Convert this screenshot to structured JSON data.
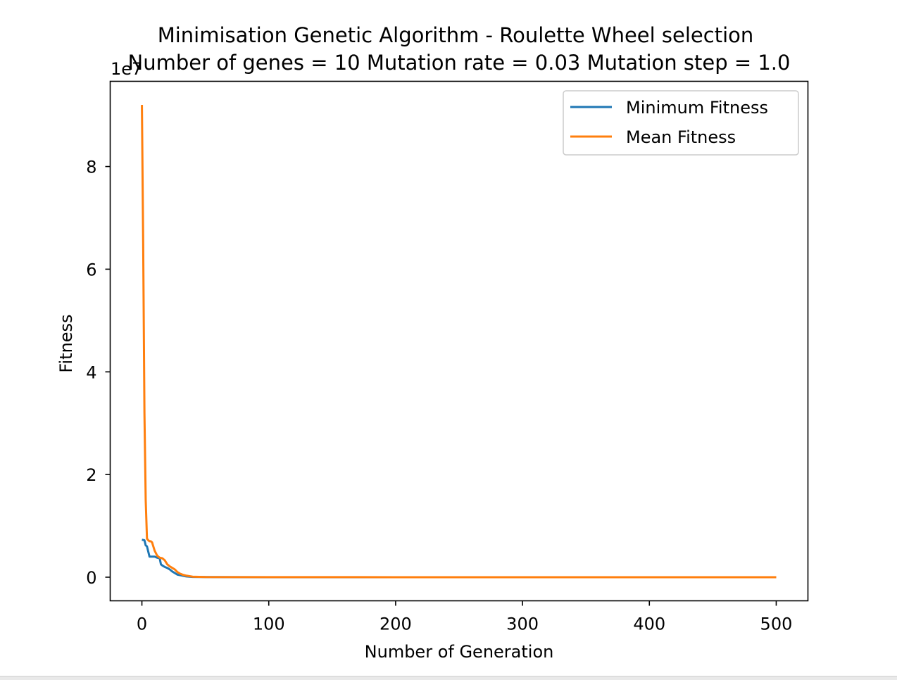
{
  "chart_data": {
    "type": "line",
    "title": "Minimisation Genetic Algorithm - Roulette Wheel selection",
    "subtitle": "Number of genes = 10 Mutation rate = 0.03 Mutation step = 1.0",
    "xlabel": "Number of Generation",
    "ylabel": "Fitness",
    "y_offset_label": "1e7",
    "xlim": [
      -25,
      525
    ],
    "ylim": [
      -0.46,
      9.66
    ],
    "xticks": [
      0,
      100,
      200,
      300,
      400,
      500
    ],
    "xtick_labels": [
      "0",
      "100",
      "200",
      "300",
      "400",
      "500"
    ],
    "yticks": [
      0,
      2,
      4,
      6,
      8
    ],
    "ytick_labels": [
      "0",
      "2",
      "4",
      "6",
      "8"
    ],
    "legend_position": "upper right",
    "grid": false,
    "series": [
      {
        "name": "Minimum Fitness",
        "color": "#1f77b4",
        "x": [
          0,
          2,
          3,
          4,
          5,
          6,
          7,
          8,
          9,
          10,
          12,
          14,
          15,
          16,
          18,
          20,
          22,
          24,
          26,
          28,
          30,
          35,
          40,
          50,
          100,
          200,
          300,
          400,
          500
        ],
        "y": [
          0.73,
          0.72,
          0.62,
          0.6,
          0.5,
          0.4,
          0.4,
          0.4,
          0.4,
          0.4,
          0.38,
          0.37,
          0.25,
          0.23,
          0.2,
          0.18,
          0.15,
          0.11,
          0.08,
          0.05,
          0.04,
          0.015,
          0.005,
          0.002,
          0.0,
          0.0,
          0.0,
          0.0,
          0.0
        ]
      },
      {
        "name": "Mean Fitness",
        "color": "#ff7f0e",
        "x": [
          0,
          1,
          2,
          3,
          4,
          5,
          6,
          7,
          8,
          9,
          10,
          12,
          14,
          16,
          18,
          20,
          22,
          24,
          26,
          28,
          30,
          32,
          35,
          40,
          50,
          100,
          200,
          300,
          400,
          500
        ],
        "y": [
          9.2,
          6.5,
          3.2,
          1.5,
          0.75,
          0.72,
          0.7,
          0.7,
          0.68,
          0.6,
          0.52,
          0.42,
          0.38,
          0.37,
          0.33,
          0.25,
          0.21,
          0.18,
          0.15,
          0.1,
          0.07,
          0.05,
          0.03,
          0.01,
          0.003,
          0.001,
          0.0,
          0.0,
          0.0,
          0.0
        ]
      }
    ]
  }
}
